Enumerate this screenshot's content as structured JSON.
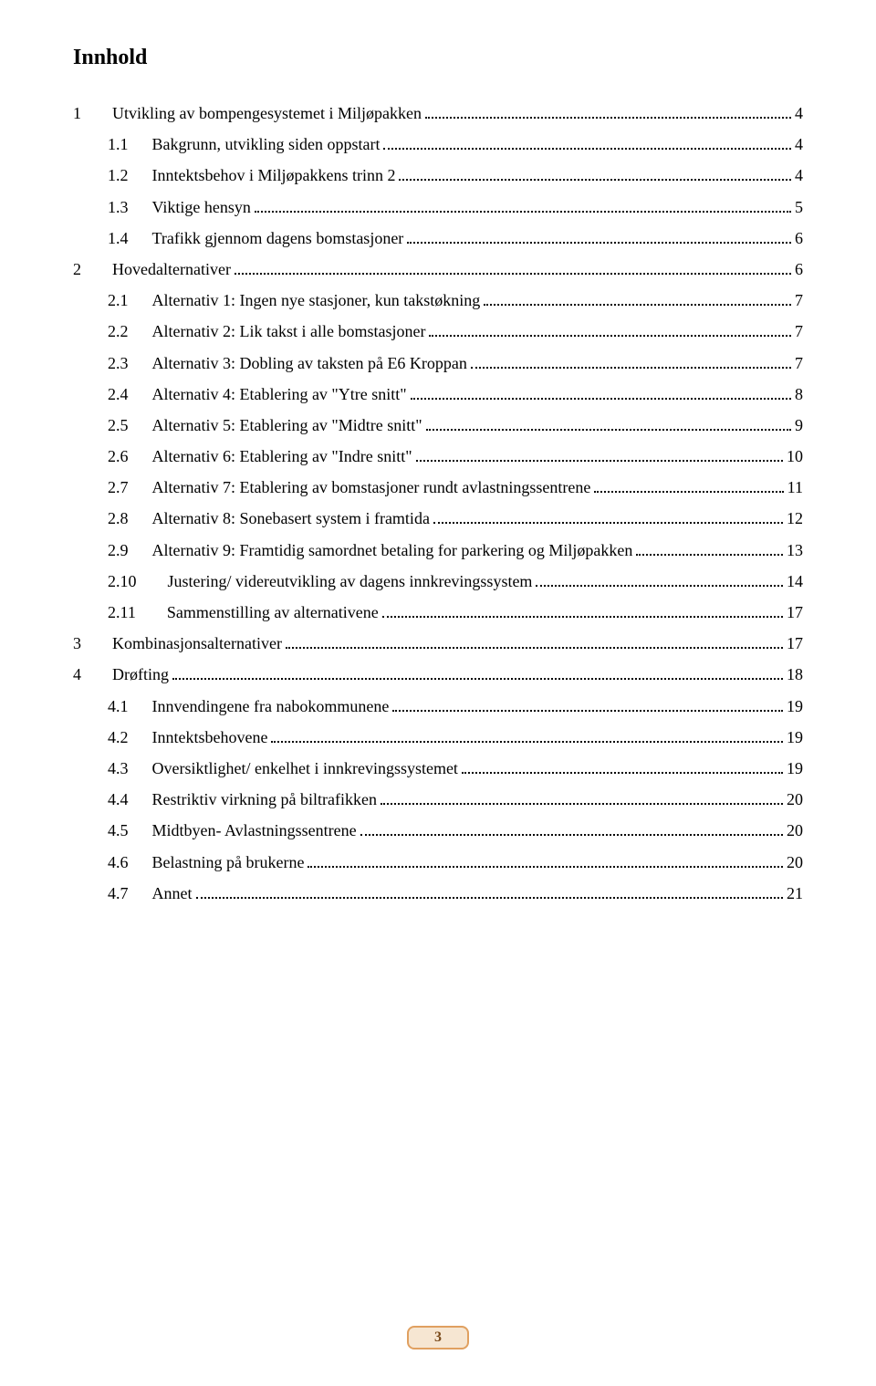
{
  "title": "Innhold",
  "page_number": "3",
  "colors": {
    "text": "#000000",
    "background": "#ffffff",
    "pagebox_border": "#e0a060",
    "pagebox_fill": "#f6e6d2",
    "pagebox_text": "#7a4a1a"
  },
  "typography": {
    "title_fontsize": 24,
    "body_fontsize": 18,
    "font_family": "Times New Roman"
  },
  "toc": [
    {
      "num": "1",
      "label": "Utvikling av bompengesystemet i Miljøpakken",
      "page": "4",
      "indent": 0
    },
    {
      "num": "1.1",
      "label": "Bakgrunn, utvikling siden oppstart",
      "page": "4",
      "indent": 1
    },
    {
      "num": "1.2",
      "label": "Inntektsbehov i Miljøpakkens trinn 2",
      "page": "4",
      "indent": 1
    },
    {
      "num": "1.3",
      "label": "Viktige hensyn",
      "page": "5",
      "indent": 1
    },
    {
      "num": "1.4",
      "label": "Trafikk gjennom dagens bomstasjoner",
      "page": "6",
      "indent": 1
    },
    {
      "num": "2",
      "label": "Hovedalternativer",
      "page": "6",
      "indent": 0
    },
    {
      "num": "2.1",
      "label": "Alternativ 1: Ingen nye stasjoner, kun takstøkning",
      "page": "7",
      "indent": 1
    },
    {
      "num": "2.2",
      "label": "Alternativ 2: Lik takst i alle bomstasjoner",
      "page": "7",
      "indent": 1
    },
    {
      "num": "2.3",
      "label": "Alternativ 3: Dobling av taksten på E6 Kroppan",
      "page": "7",
      "indent": 1
    },
    {
      "num": "2.4",
      "label": "Alternativ 4: Etablering av \"Ytre snitt\"",
      "page": "8",
      "indent": 1
    },
    {
      "num": "2.5",
      "label": "Alternativ 5: Etablering av \"Midtre snitt\"",
      "page": "9",
      "indent": 1
    },
    {
      "num": "2.6",
      "label": "Alternativ 6: Etablering av \"Indre snitt\"",
      "page": "10",
      "indent": 1
    },
    {
      "num": "2.7",
      "label": "Alternativ 7: Etablering av bomstasjoner rundt avlastningssentrene",
      "page": "11",
      "indent": 1
    },
    {
      "num": "2.8",
      "label": "Alternativ 8: Sonebasert system i framtida",
      "page": "12",
      "indent": 1
    },
    {
      "num": "2.9",
      "label": "Alternativ 9: Framtidig samordnet betaling for parkering og Miljøpakken",
      "page": "13",
      "indent": 1
    },
    {
      "num": "2.10",
      "label": "Justering/ videreutvikling av dagens innkrevingssystem",
      "page": "14",
      "indent": 2
    },
    {
      "num": "2.11",
      "label": "Sammenstilling av alternativene",
      "page": "17",
      "indent": 2
    },
    {
      "num": "3",
      "label": "Kombinasjonsalternativer",
      "page": "17",
      "indent": 0
    },
    {
      "num": "4",
      "label": "Drøfting",
      "page": "18",
      "indent": 0
    },
    {
      "num": "4.1",
      "label": "Innvendingene fra nabokommunene",
      "page": "19",
      "indent": 1
    },
    {
      "num": "4.2",
      "label": "Inntektsbehovene",
      "page": "19",
      "indent": 1
    },
    {
      "num": "4.3",
      "label": "Oversiktlighet/ enkelhet i innkrevingssystemet",
      "page": "19",
      "indent": 1
    },
    {
      "num": "4.4",
      "label": "Restriktiv virkning på biltrafikken",
      "page": "20",
      "indent": 1
    },
    {
      "num": "4.5",
      "label": "Midtbyen- Avlastningssentrene",
      "page": "20",
      "indent": 1
    },
    {
      "num": "4.6",
      "label": "Belastning på brukerne",
      "page": "20",
      "indent": 1
    },
    {
      "num": "4.7",
      "label": "Annet",
      "page": "21",
      "indent": 1
    }
  ]
}
